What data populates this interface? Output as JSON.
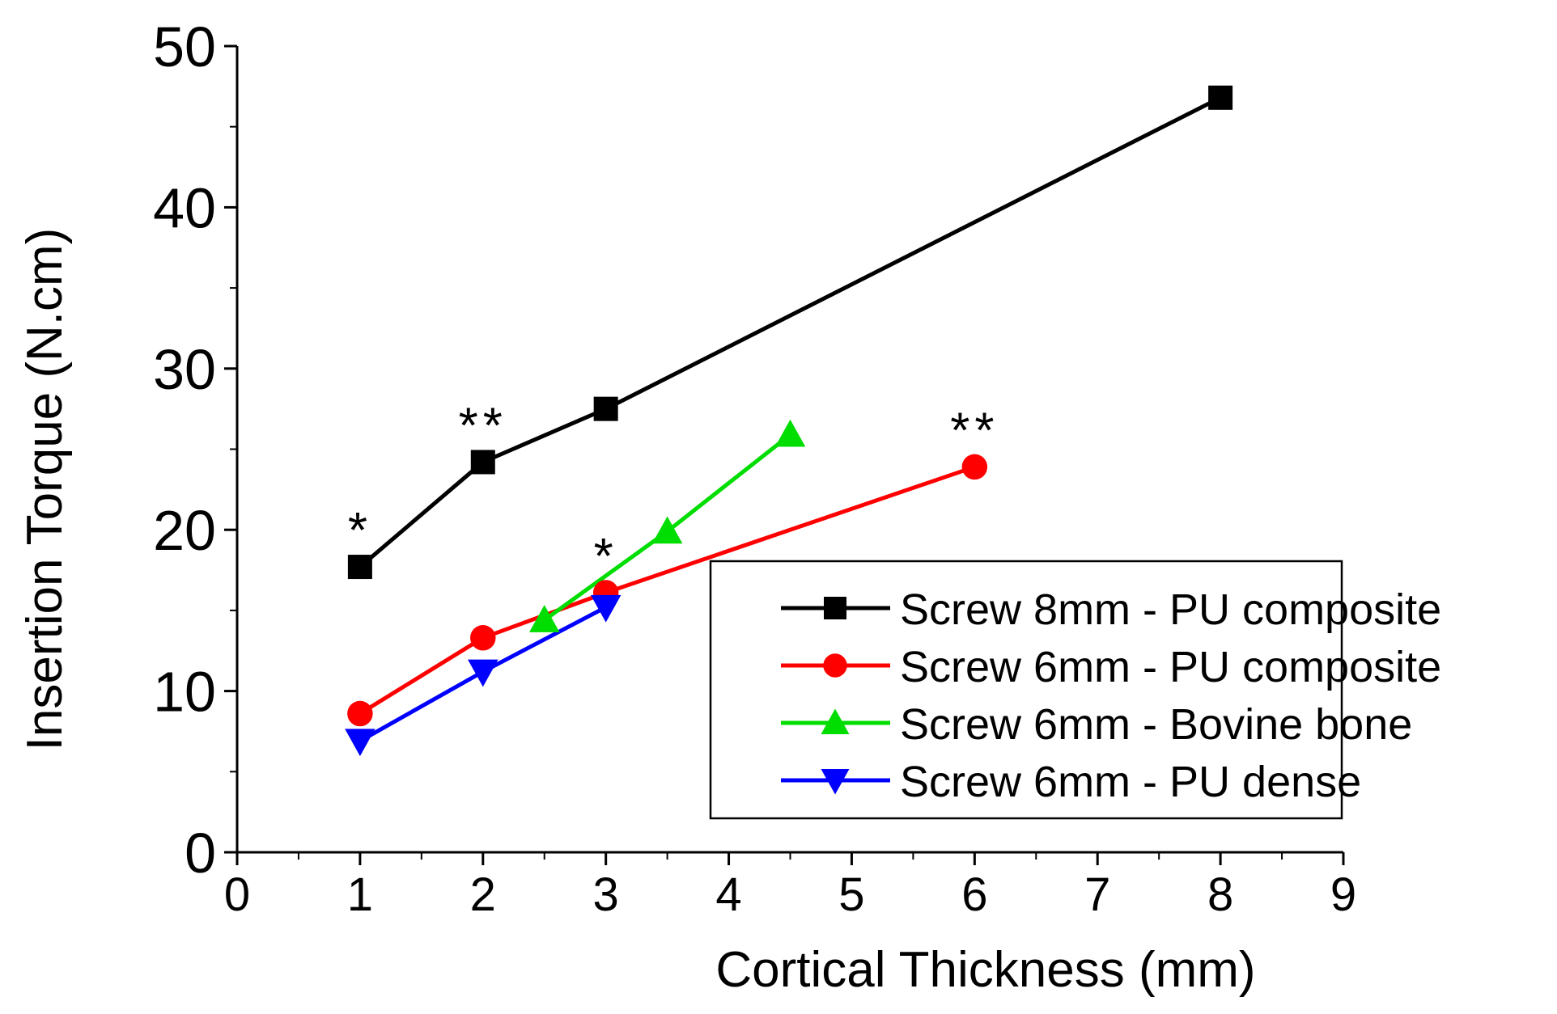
{
  "chart_data": {
    "type": "line",
    "xlabel": "Cortical Thickness (mm)",
    "ylabel": "Insertion Torque (N.cm)",
    "xlim": [
      0,
      9
    ],
    "ylim": [
      0,
      50
    ],
    "x_ticks": [
      "0",
      "1",
      "2",
      "3",
      "4",
      "5",
      "6",
      "7",
      "8",
      "9"
    ],
    "y_ticks": [
      "0",
      "10",
      "20",
      "30",
      "40",
      "50"
    ],
    "grid": false,
    "legend_position": "center-right",
    "series": [
      {
        "name": "Screw 8mm - PU composite",
        "color": "#000000",
        "marker": "square",
        "x": [
          1,
          2,
          3,
          8
        ],
        "y": [
          17.7,
          24.2,
          27.5,
          46.8
        ]
      },
      {
        "name": "Screw 6mm - PU composite",
        "color": "#ff0000",
        "marker": "circle",
        "x": [
          1,
          2,
          3,
          6
        ],
        "y": [
          8.6,
          13.3,
          16.1,
          23.9
        ]
      },
      {
        "name": "Screw 6mm - Bovine bone",
        "color": "#00dd00",
        "marker": "triangle-up",
        "x": [
          2.5,
          3.5,
          4.5
        ],
        "y": [
          14.4,
          19.9,
          25.9
        ]
      },
      {
        "name": "Screw 6mm - PU dense",
        "color": "#0000ff",
        "marker": "triangle-down",
        "x": [
          1,
          2,
          3
        ],
        "y": [
          6.9,
          11.2,
          15.2
        ]
      }
    ],
    "annotations": [
      {
        "text": "*",
        "x": 1,
        "y": 17.7,
        "color": "#000000"
      },
      {
        "text": "**",
        "x": 2,
        "y": 24.2,
        "color": "#000000"
      },
      {
        "text": "*",
        "x": 3,
        "y": 16.1,
        "color": "#ff0000"
      },
      {
        "text": "**",
        "x": 6,
        "y": 23.9,
        "color": "#ff0000"
      }
    ]
  }
}
